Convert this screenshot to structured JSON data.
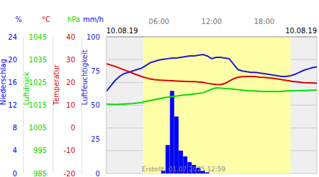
{
  "chart_data": {
    "type": "line",
    "footer": "Erstellt: 01.07.2025 12:59",
    "date_labels": [
      "10.08.19",
      "10.08.19"
    ],
    "x": [
      0,
      0.5,
      1,
      1.5,
      2,
      2.5,
      3,
      3.5,
      4,
      4.5,
      5,
      5.5,
      6,
      6.5,
      7,
      7.5,
      8,
      8.5,
      9,
      9.5,
      10,
      10.5,
      11,
      11.5,
      12,
      12.5,
      13,
      13.5,
      14,
      14.5,
      15,
      15.5,
      16,
      16.5,
      17,
      17.5,
      18,
      18.5,
      19,
      19.5,
      20,
      20.5,
      21,
      21.5,
      22,
      22.5,
      23,
      23.5,
      24
    ],
    "xlim": [
      0,
      24
    ],
    "xticks": [
      {
        "value": 6,
        "label": "06:00"
      },
      {
        "value": 12,
        "label": "12:00"
      },
      {
        "value": 18,
        "label": "18:00"
      }
    ],
    "daylight": [
      4.2,
      21.0
    ],
    "grid": true,
    "series": [
      {
        "name": "Luftfeuchtigkeit",
        "unit": "%",
        "color": "#1a1ad8",
        "type": "line",
        "ylim": [
          0,
          100
        ],
        "yticks": [
          0,
          25,
          50,
          75,
          100
        ],
        "values": [
          60,
          64,
          68,
          71,
          73,
          74,
          75,
          76,
          77,
          79,
          81,
          82,
          83,
          83.5,
          84,
          84.5,
          84.5,
          85,
          85.5,
          86,
          86,
          86.5,
          87,
          86,
          84,
          85,
          85,
          84.5,
          84,
          80,
          76,
          75,
          74.5,
          74,
          74,
          73.5,
          73,
          72.5,
          72,
          71.5,
          71,
          71,
          71.5,
          72.5,
          74,
          75.5,
          76.5,
          77.5,
          78
        ]
      },
      {
        "name": "Temperatur",
        "unit": "°C",
        "color": "#dd0000",
        "type": "line",
        "ylim": [
          -20,
          40
        ],
        "yticks": [
          -20,
          -10,
          0,
          10,
          20,
          30,
          40
        ],
        "values": [
          28.2,
          27.6,
          27.0,
          26.3,
          25.5,
          24.8,
          24.0,
          23.3,
          22.6,
          22.0,
          21.5,
          21.2,
          21.0,
          20.9,
          20.8,
          20.7,
          20.6,
          20.5,
          20.4,
          20.3,
          20.3,
          20.2,
          20.0,
          19.6,
          19.3,
          19.1,
          19.0,
          19.5,
          20.5,
          21.6,
          22.2,
          22.5,
          22.6,
          22.6,
          22.5,
          22.3,
          22.2,
          22.0,
          21.8,
          21.5,
          21.2,
          20.9,
          20.6,
          20.3,
          20.1,
          19.9,
          19.8,
          19.7,
          19.6
        ]
      },
      {
        "name": "Luftdruck",
        "unit": "hPa",
        "color": "#00dd00",
        "type": "line",
        "ylim": [
          985,
          1045
        ],
        "yticks": [
          985,
          995,
          1005,
          1015,
          1025,
          1035,
          1045
        ],
        "values": [
          1015.5,
          1015.4,
          1015.3,
          1015.4,
          1015.5,
          1015.6,
          1015.7,
          1015.9,
          1016.2,
          1016.6,
          1017,
          1017.4,
          1017.8,
          1018.2,
          1018.5,
          1018.8,
          1019.0,
          1019.3,
          1019.5,
          1019.7,
          1019.9,
          1020.1,
          1020.4,
          1021.2,
          1022,
          1022.6,
          1022.5,
          1022.3,
          1022.2,
          1022,
          1021.8,
          1021.6,
          1021.4,
          1021.3,
          1021.2,
          1021.1,
          1021,
          1021,
          1021,
          1021,
          1021.1,
          1021.2,
          1021.3,
          1021.3,
          1021.4,
          1021.4,
          1021.5,
          1021.5,
          1021.6
        ]
      },
      {
        "name": "Niederschlag",
        "unit": "mm/h",
        "color": "#0000ff",
        "type": "bar",
        "ylim": [
          0,
          24
        ],
        "yticks": [
          0,
          4,
          8,
          12,
          16,
          20,
          24
        ],
        "values": [
          0,
          0,
          0,
          0,
          0,
          0,
          0,
          0,
          0,
          0,
          0,
          0,
          0,
          0.5,
          5,
          14.5,
          10,
          4,
          3,
          2,
          1.5,
          1,
          0.5,
          0.2,
          0,
          0,
          0,
          0,
          0,
          0,
          0,
          0,
          0,
          0,
          0,
          0,
          0,
          0,
          0,
          0,
          0,
          0,
          0,
          0,
          0,
          0,
          0,
          0,
          0
        ]
      }
    ]
  }
}
